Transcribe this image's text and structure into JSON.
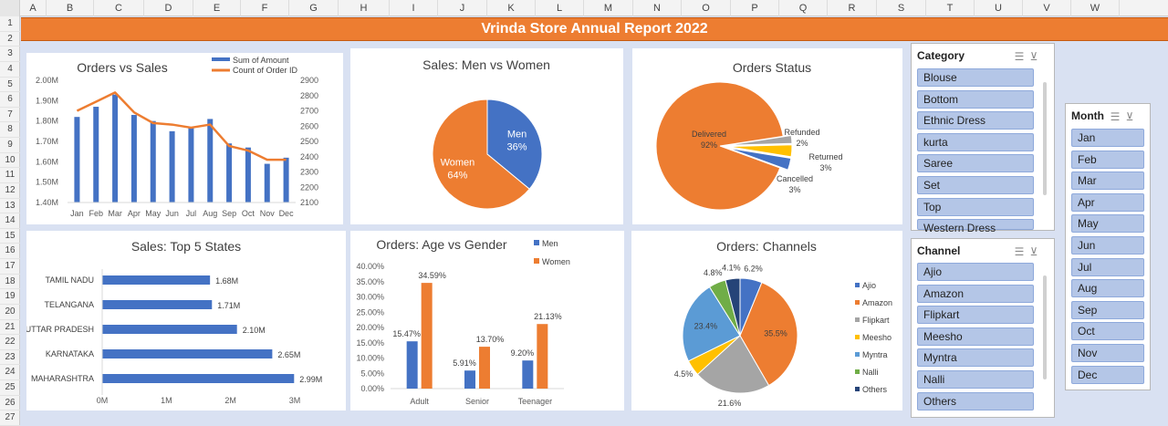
{
  "sheet": {
    "columns": [
      "A",
      "B",
      "C",
      "D",
      "E",
      "F",
      "G",
      "H",
      "I",
      "J",
      "K",
      "L",
      "M",
      "N",
      "O",
      "P",
      "Q",
      "R",
      "S",
      "T",
      "U",
      "V",
      "W"
    ],
    "rows": [
      "1",
      "2",
      "3",
      "4",
      "5",
      "6",
      "7",
      "8",
      "9",
      "10",
      "11",
      "12",
      "13",
      "14",
      "15",
      "16",
      "17",
      "18",
      "19",
      "20",
      "21",
      "22",
      "23",
      "24",
      "25",
      "26",
      "27"
    ]
  },
  "report": {
    "title": "Vrinda Store Annual Report 2022"
  },
  "colors": {
    "banner": "#ed7d31",
    "blue": "#4472c4",
    "orange": "#ed7d31",
    "gray": "#a5a5a5",
    "yellow": "#ffc000",
    "lightblue": "#5b9bd5",
    "green": "#70ad47",
    "navy": "#264478",
    "slicer_item": "#b4c6e7"
  },
  "orders_vs_sales": {
    "title": "Orders vs Sales",
    "legend": [
      "Sum of Amount",
      "Count of Order ID"
    ],
    "left_ticks": [
      "2.00M",
      "1.90M",
      "1.80M",
      "1.70M",
      "1.60M",
      "1.50M",
      "1.40M"
    ],
    "right_ticks": [
      "2900",
      "2800",
      "2700",
      "2600",
      "2500",
      "2400",
      "2300",
      "2200",
      "2100"
    ],
    "chart_data": {
      "type": "bar",
      "categories": [
        "Jan",
        "Feb",
        "Mar",
        "Apr",
        "May",
        "Jun",
        "Jul",
        "Aug",
        "Sep",
        "Oct",
        "Nov",
        "Dec"
      ],
      "series": [
        {
          "name": "Sum of Amount",
          "axis": "left",
          "values": [
            1.82,
            1.87,
            1.93,
            1.83,
            1.8,
            1.75,
            1.77,
            1.81,
            1.69,
            1.67,
            1.59,
            1.62
          ]
        },
        {
          "name": "Count of Order ID",
          "type": "line",
          "axis": "right",
          "values": [
            2700,
            2760,
            2820,
            2690,
            2620,
            2610,
            2590,
            2610,
            2470,
            2440,
            2380,
            2380
          ]
        }
      ],
      "ylim_left": [
        1.4,
        2.0
      ],
      "ylim_right": [
        2100,
        2900
      ]
    }
  },
  "men_women": {
    "title": "Sales: Men vs Women",
    "chart_data": {
      "type": "pie",
      "labels": [
        "Men",
        "Women"
      ],
      "pct_labels": [
        "36%",
        "64%"
      ],
      "values": [
        36,
        64
      ]
    }
  },
  "order_status": {
    "title": "Orders Status",
    "chart_data": {
      "type": "pie",
      "labels": [
        "Delivered",
        "Refunded",
        "Returned",
        "Cancelled"
      ],
      "pct_labels": [
        "92%",
        "2%",
        "3%",
        "3%"
      ],
      "values": [
        92,
        2,
        3,
        3
      ]
    }
  },
  "top_states": {
    "title": "Sales: Top 5 States",
    "x_ticks": [
      "0M",
      "1M",
      "2M",
      "3M"
    ],
    "chart_data": {
      "type": "bar",
      "orientation": "horizontal",
      "categories": [
        "TAMIL NADU",
        "TELANGANA",
        "UTTAR PRADESH",
        "KARNATAKA",
        "MAHARASHTRA"
      ],
      "values": [
        1.68,
        1.71,
        2.1,
        2.65,
        2.99
      ],
      "value_labels": [
        "1.68M",
        "1.71M",
        "2.10M",
        "2.65M",
        "2.99M"
      ],
      "xlim": [
        0,
        3
      ]
    }
  },
  "age_gender": {
    "title": "Orders: Age vs Gender",
    "y_ticks": [
      "40.00%",
      "35.00%",
      "30.00%",
      "25.00%",
      "20.00%",
      "15.00%",
      "10.00%",
      "5.00%",
      "0.00%"
    ],
    "chart_data": {
      "type": "bar",
      "categories": [
        "Adult",
        "Senior",
        "Teenager"
      ],
      "series": [
        {
          "name": "Men",
          "values": [
            15.47,
            5.91,
            9.2
          ],
          "labels": [
            "15.47%",
            "5.91%",
            "9.20%"
          ]
        },
        {
          "name": "Women",
          "values": [
            34.59,
            13.7,
            21.13
          ],
          "labels": [
            "34.59%",
            "13.70%",
            "21.13%"
          ]
        }
      ],
      "ylim": [
        0,
        40
      ]
    }
  },
  "channels": {
    "title": "Orders: Channels",
    "chart_data": {
      "type": "pie",
      "labels": [
        "Ajio",
        "Amazon",
        "Flipkart",
        "Meesho",
        "Myntra",
        "Nalli",
        "Others"
      ],
      "values": [
        6.2,
        35.5,
        21.6,
        4.5,
        23.4,
        4.8,
        4.1
      ],
      "pct_labels": [
        "6.2%",
        "35.5%",
        "21.6%",
        "4.5%",
        "23.4%",
        "4.8%",
        "4.1%"
      ]
    }
  },
  "slicers": {
    "category": {
      "title": "Category",
      "items": [
        "Blouse",
        "Bottom",
        "Ethnic Dress",
        "kurta",
        "Saree",
        "Set",
        "Top",
        "Western Dress"
      ]
    },
    "channel": {
      "title": "Channel",
      "items": [
        "Ajio",
        "Amazon",
        "Flipkart",
        "Meesho",
        "Myntra",
        "Nalli",
        "Others"
      ]
    },
    "month": {
      "title": "Month",
      "items": [
        "Jan",
        "Feb",
        "Mar",
        "Apr",
        "May",
        "Jun",
        "Jul",
        "Aug",
        "Sep",
        "Oct",
        "Nov",
        "Dec"
      ]
    }
  }
}
